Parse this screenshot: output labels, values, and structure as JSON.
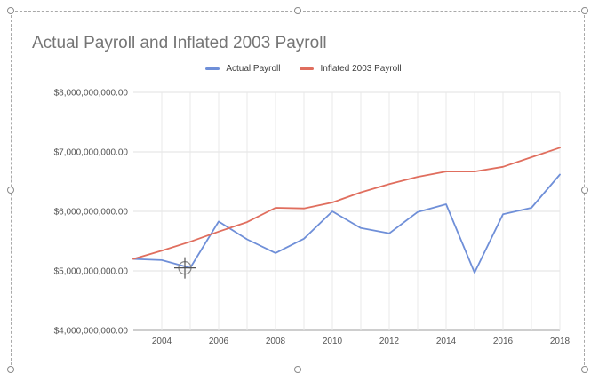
{
  "chart_data": {
    "type": "line",
    "title": "Actual Payroll and Inflated 2003 Payroll",
    "xlabel": "",
    "ylabel": "",
    "x": [
      2003,
      2004,
      2005,
      2006,
      2007,
      2008,
      2009,
      2010,
      2011,
      2012,
      2013,
      2014,
      2015,
      2016,
      2017,
      2018
    ],
    "series": [
      {
        "name": "Actual Payroll",
        "color": "#6f8fd8",
        "values": [
          5200000000,
          5180000000,
          5050000000,
          5830000000,
          5530000000,
          5300000000,
          5540000000,
          6000000000,
          5720000000,
          5630000000,
          5990000000,
          6120000000,
          4970000000,
          5950000000,
          6060000000,
          6620000000
        ]
      },
      {
        "name": "Inflated 2003 Payroll",
        "color": "#e06e5e",
        "values": [
          5200000000,
          5340000000,
          5490000000,
          5660000000,
          5820000000,
          6060000000,
          6050000000,
          6150000000,
          6320000000,
          6460000000,
          6580000000,
          6670000000,
          6670000000,
          6750000000,
          6910000000,
          7070000000
        ]
      }
    ],
    "ylim": [
      4000000000,
      8000000000
    ],
    "y_ticks": [
      "$4,000,000,000.00",
      "$5,000,000,000.00",
      "$6,000,000,000.00",
      "$7,000,000,000.00",
      "$8,000,000,000.00"
    ],
    "x_ticks": [
      "2004",
      "2006",
      "2008",
      "2010",
      "2012",
      "2014",
      "2016",
      "2018"
    ],
    "grid": true,
    "legend_position": "top"
  }
}
